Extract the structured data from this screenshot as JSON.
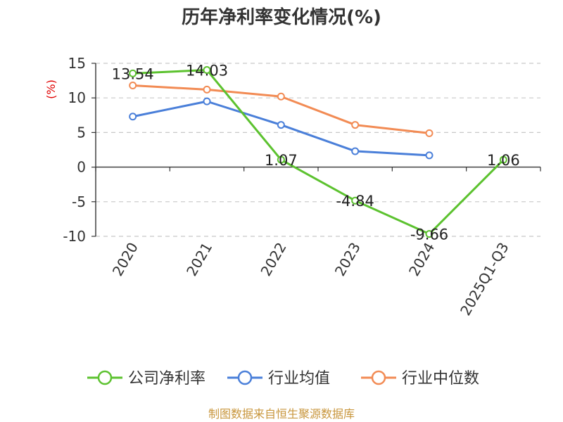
{
  "chart_data": {
    "type": "line",
    "title": "历年净利率变化情况(%)",
    "ylabel": "(%)",
    "xlabel": "",
    "categories": [
      "2020",
      "2021",
      "2022",
      "2023",
      "2024",
      "2025Q1-Q3"
    ],
    "ylim": [
      -10,
      15
    ],
    "yticks": [
      15,
      10,
      5,
      0,
      -5,
      -10
    ],
    "ytick_labels": [
      "15",
      "10",
      "5",
      "0",
      "-5",
      "-10"
    ],
    "grid": true,
    "legend_position": "bottom",
    "series": [
      {
        "name": "公司净利率",
        "color": "#5cc22f",
        "values": [
          13.54,
          14.03,
          1.07,
          -4.84,
          -9.66,
          1.06
        ],
        "labels": [
          "13.54",
          "14.03",
          "1.07",
          "-4.84",
          "-9.66",
          "1.06"
        ]
      },
      {
        "name": "行业均值",
        "color": "#4a7fd9",
        "values": [
          7.3,
          9.5,
          6.1,
          2.3,
          1.7,
          null
        ]
      },
      {
        "name": "行业中位数",
        "color": "#f28b54",
        "values": [
          11.8,
          11.2,
          10.2,
          6.1,
          4.9,
          null
        ]
      }
    ]
  },
  "footer": {
    "source": "制图数据来自恒生聚源数据库"
  }
}
